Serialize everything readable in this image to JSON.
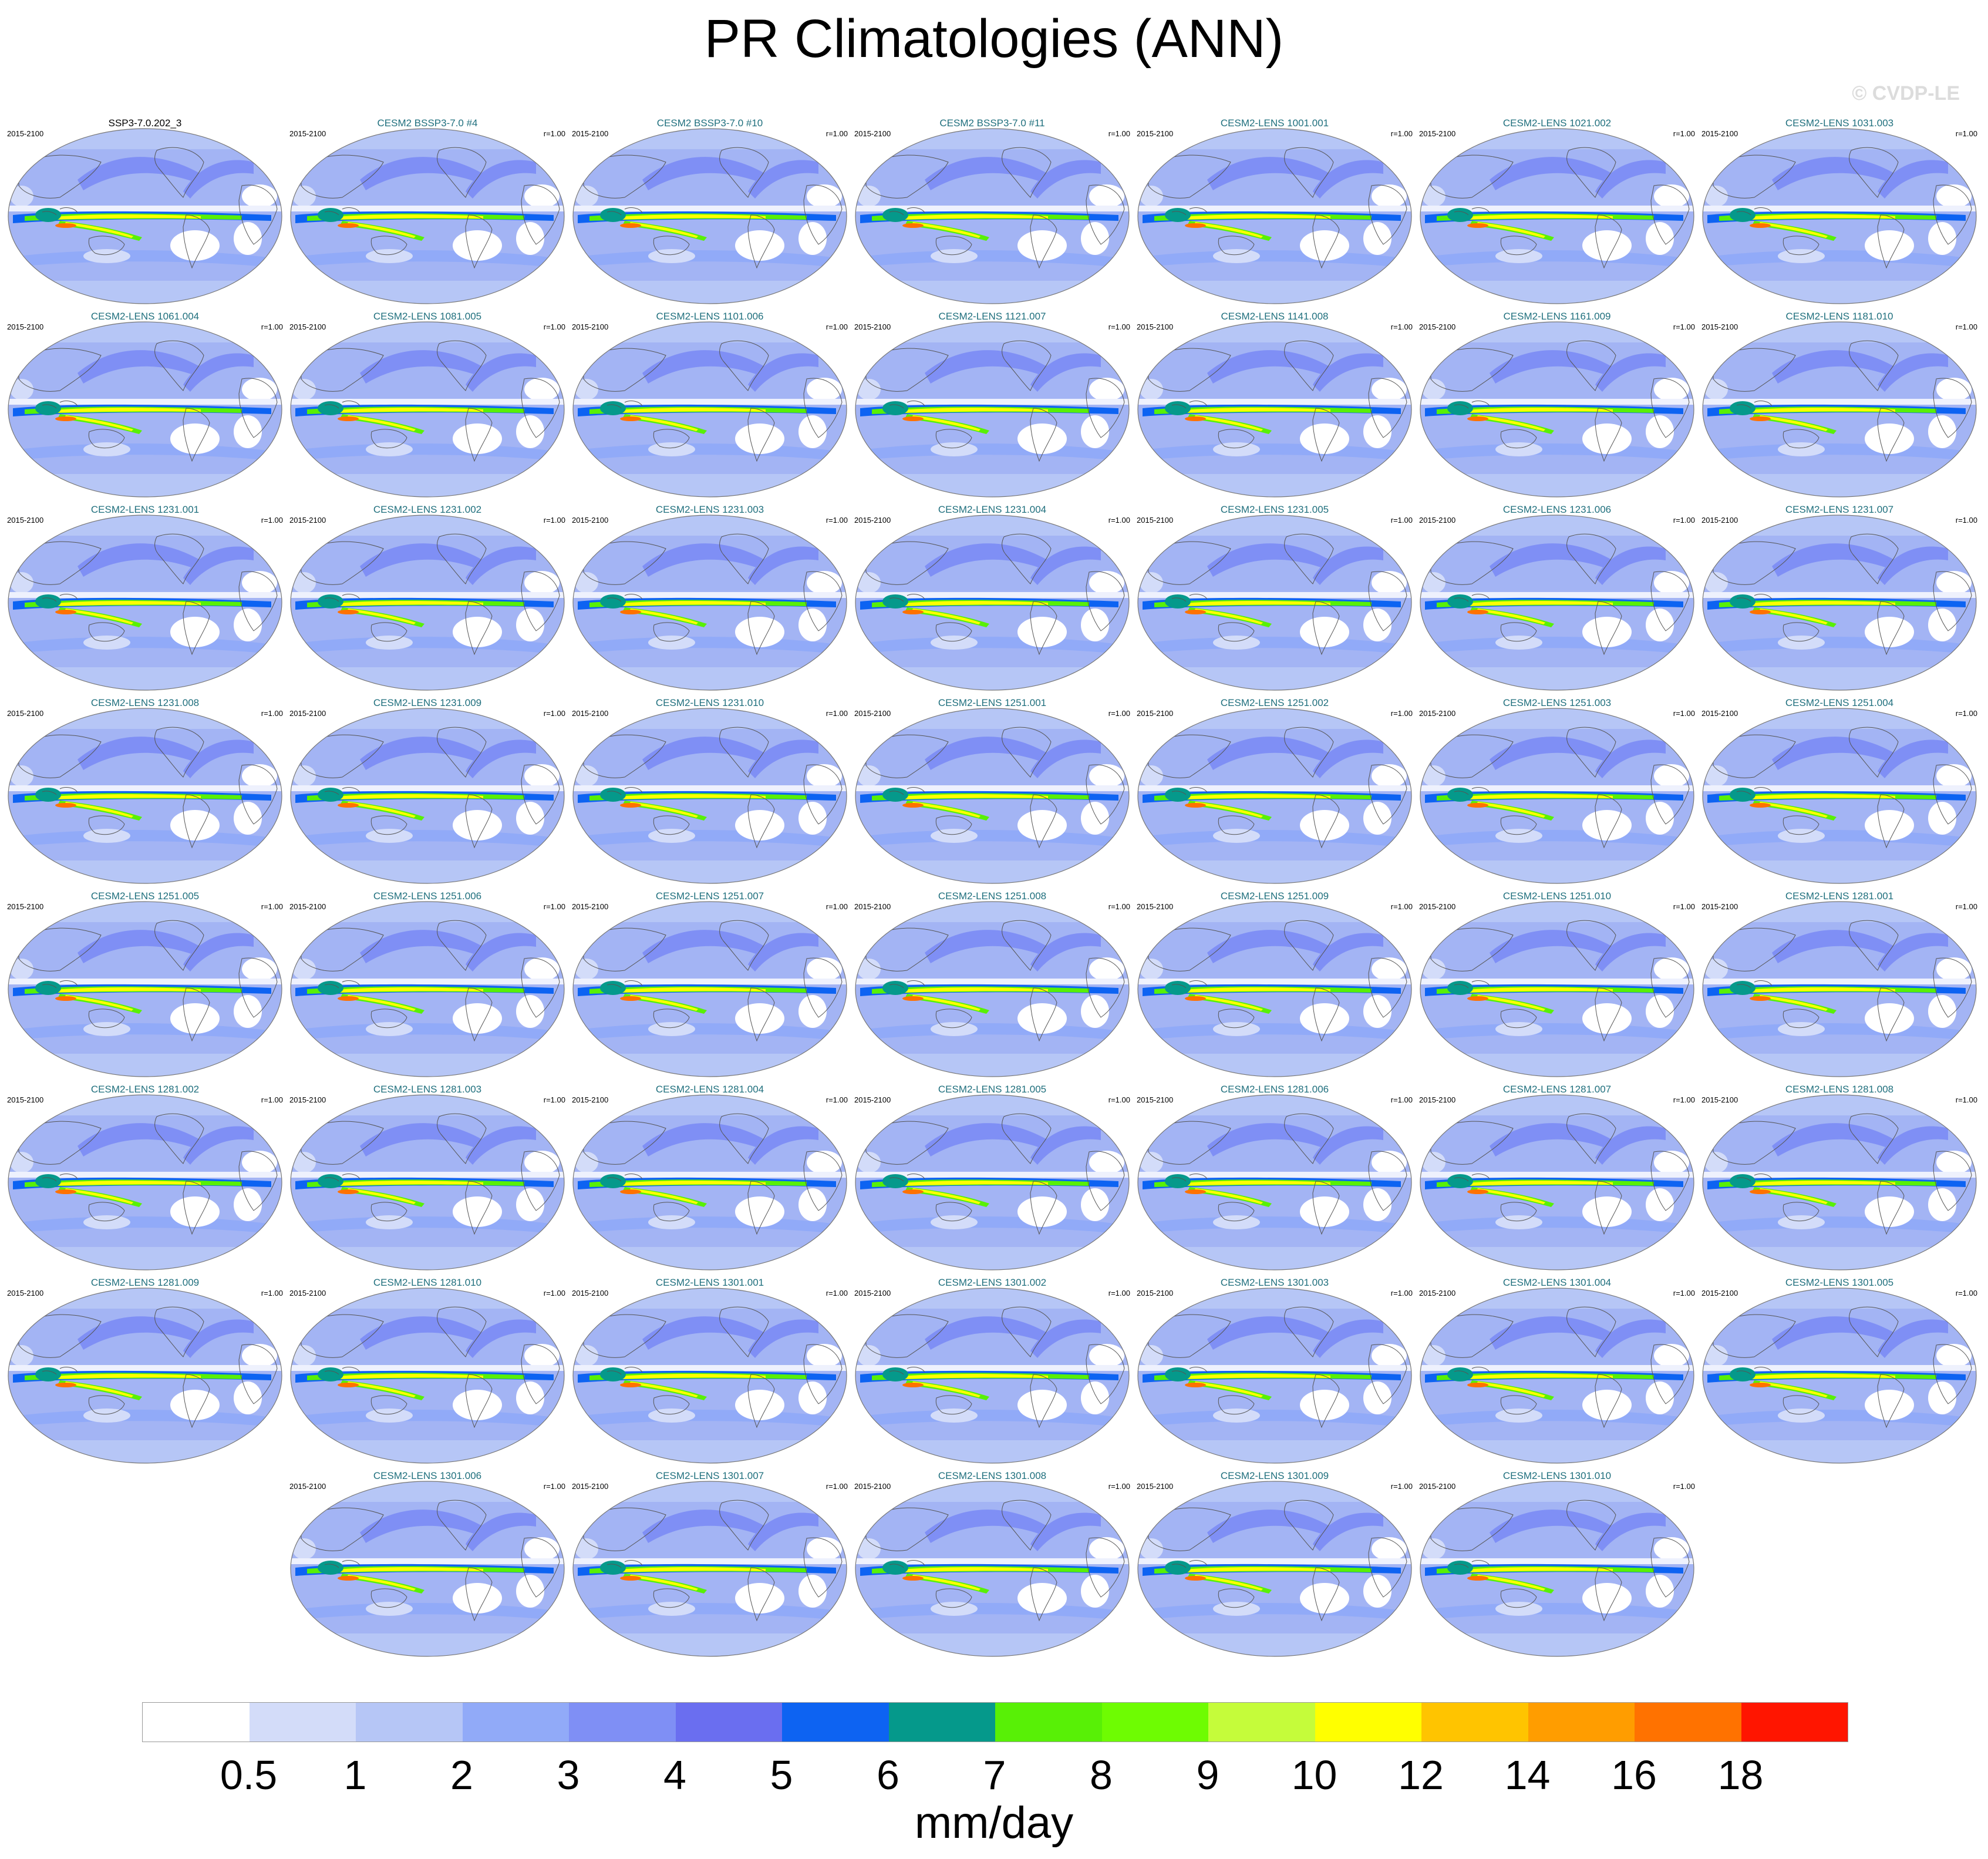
{
  "figure": {
    "title": "PR Climatologies (ANN)",
    "watermark": "© CVDP-LE"
  },
  "panels": [
    {
      "title": "SSP3-7.0.202_3",
      "period": "2015-2100",
      "corr": "",
      "obs": true
    },
    {
      "title": "CESM2 BSSP3-7.0 #4",
      "period": "2015-2100",
      "corr": "r=1.00"
    },
    {
      "title": "CESM2 BSSP3-7.0 #10",
      "period": "2015-2100",
      "corr": "r=1.00"
    },
    {
      "title": "CESM2 BSSP3-7.0 #11",
      "period": "2015-2100",
      "corr": "r=1.00"
    },
    {
      "title": "CESM2-LENS 1001.001",
      "period": "2015-2100",
      "corr": "r=1.00"
    },
    {
      "title": "CESM2-LENS 1021.002",
      "period": "2015-2100",
      "corr": "r=1.00"
    },
    {
      "title": "CESM2-LENS 1031.003",
      "period": "2015-2100",
      "corr": "r=1.00"
    },
    {
      "title": "CESM2-LENS 1061.004",
      "period": "2015-2100",
      "corr": "r=1.00"
    },
    {
      "title": "CESM2-LENS 1081.005",
      "period": "2015-2100",
      "corr": "r=1.00"
    },
    {
      "title": "CESM2-LENS 1101.006",
      "period": "2015-2100",
      "corr": "r=1.00"
    },
    {
      "title": "CESM2-LENS 1121.007",
      "period": "2015-2100",
      "corr": "r=1.00"
    },
    {
      "title": "CESM2-LENS 1141.008",
      "period": "2015-2100",
      "corr": "r=1.00"
    },
    {
      "title": "CESM2-LENS 1161.009",
      "period": "2015-2100",
      "corr": "r=1.00"
    },
    {
      "title": "CESM2-LENS 1181.010",
      "period": "2015-2100",
      "corr": "r=1.00"
    },
    {
      "title": "CESM2-LENS 1231.001",
      "period": "2015-2100",
      "corr": "r=1.00"
    },
    {
      "title": "CESM2-LENS 1231.002",
      "period": "2015-2100",
      "corr": "r=1.00"
    },
    {
      "title": "CESM2-LENS 1231.003",
      "period": "2015-2100",
      "corr": "r=1.00"
    },
    {
      "title": "CESM2-LENS 1231.004",
      "period": "2015-2100",
      "corr": "r=1.00"
    },
    {
      "title": "CESM2-LENS 1231.005",
      "period": "2015-2100",
      "corr": "r=1.00"
    },
    {
      "title": "CESM2-LENS 1231.006",
      "period": "2015-2100",
      "corr": "r=1.00"
    },
    {
      "title": "CESM2-LENS 1231.007",
      "period": "2015-2100",
      "corr": "r=1.00"
    },
    {
      "title": "CESM2-LENS 1231.008",
      "period": "2015-2100",
      "corr": "r=1.00"
    },
    {
      "title": "CESM2-LENS 1231.009",
      "period": "2015-2100",
      "corr": "r=1.00"
    },
    {
      "title": "CESM2-LENS 1231.010",
      "period": "2015-2100",
      "corr": "r=1.00"
    },
    {
      "title": "CESM2-LENS 1251.001",
      "period": "2015-2100",
      "corr": "r=1.00"
    },
    {
      "title": "CESM2-LENS 1251.002",
      "period": "2015-2100",
      "corr": "r=1.00"
    },
    {
      "title": "CESM2-LENS 1251.003",
      "period": "2015-2100",
      "corr": "r=1.00"
    },
    {
      "title": "CESM2-LENS 1251.004",
      "period": "2015-2100",
      "corr": "r=1.00"
    },
    {
      "title": "CESM2-LENS 1251.005",
      "period": "2015-2100",
      "corr": "r=1.00"
    },
    {
      "title": "CESM2-LENS 1251.006",
      "period": "2015-2100",
      "corr": "r=1.00"
    },
    {
      "title": "CESM2-LENS 1251.007",
      "period": "2015-2100",
      "corr": "r=1.00"
    },
    {
      "title": "CESM2-LENS 1251.008",
      "period": "2015-2100",
      "corr": "r=1.00"
    },
    {
      "title": "CESM2-LENS 1251.009",
      "period": "2015-2100",
      "corr": "r=1.00"
    },
    {
      "title": "CESM2-LENS 1251.010",
      "period": "2015-2100",
      "corr": "r=1.00"
    },
    {
      "title": "CESM2-LENS 1281.001",
      "period": "2015-2100",
      "corr": "r=1.00"
    },
    {
      "title": "CESM2-LENS 1281.002",
      "period": "2015-2100",
      "corr": "r=1.00"
    },
    {
      "title": "CESM2-LENS 1281.003",
      "period": "2015-2100",
      "corr": "r=1.00"
    },
    {
      "title": "CESM2-LENS 1281.004",
      "period": "2015-2100",
      "corr": "r=1.00"
    },
    {
      "title": "CESM2-LENS 1281.005",
      "period": "2015-2100",
      "corr": "r=1.00"
    },
    {
      "title": "CESM2-LENS 1281.006",
      "period": "2015-2100",
      "corr": "r=1.00"
    },
    {
      "title": "CESM2-LENS 1281.007",
      "period": "2015-2100",
      "corr": "r=1.00"
    },
    {
      "title": "CESM2-LENS 1281.008",
      "period": "2015-2100",
      "corr": "r=1.00"
    },
    {
      "title": "CESM2-LENS 1281.009",
      "period": "2015-2100",
      "corr": "r=1.00"
    },
    {
      "title": "CESM2-LENS 1281.010",
      "period": "2015-2100",
      "corr": "r=1.00"
    },
    {
      "title": "CESM2-LENS 1301.001",
      "period": "2015-2100",
      "corr": "r=1.00"
    },
    {
      "title": "CESM2-LENS 1301.002",
      "period": "2015-2100",
      "corr": "r=1.00"
    },
    {
      "title": "CESM2-LENS 1301.003",
      "period": "2015-2100",
      "corr": "r=1.00"
    },
    {
      "title": "CESM2-LENS 1301.004",
      "period": "2015-2100",
      "corr": "r=1.00"
    },
    {
      "title": "CESM2-LENS 1301.005",
      "period": "2015-2100",
      "corr": "r=1.00"
    },
    {
      "title": "CESM2-LENS 1301.006",
      "period": "2015-2100",
      "corr": "r=1.00"
    },
    {
      "title": "CESM2-LENS 1301.007",
      "period": "2015-2100",
      "corr": "r=1.00"
    },
    {
      "title": "CESM2-LENS 1301.008",
      "period": "2015-2100",
      "corr": "r=1.00"
    },
    {
      "title": "CESM2-LENS 1301.009",
      "period": "2015-2100",
      "corr": "r=1.00"
    },
    {
      "title": "CESM2-LENS 1301.010",
      "period": "2015-2100",
      "corr": "r=1.00"
    }
  ],
  "colorbar": {
    "units": "mm/day",
    "ticks": [
      "0.5",
      "1",
      "2",
      "3",
      "4",
      "5",
      "6",
      "7",
      "8",
      "9",
      "10",
      "12",
      "14",
      "16",
      "18"
    ],
    "colors": [
      "#ffffff",
      "#d3dcf9",
      "#b6c6f6",
      "#91aaf8",
      "#7f8ff5",
      "#6a6ef0",
      "#0d63f2",
      "#05998b",
      "#58f006",
      "#6efc02",
      "#c5fc3a",
      "#ffff00",
      "#ffc400",
      "#ff9d00",
      "#ff7200",
      "#ff1500"
    ]
  },
  "map_style": {
    "background_color": "#a3b4f4",
    "outline_color": "#777777",
    "coastline_color": "#555555"
  }
}
